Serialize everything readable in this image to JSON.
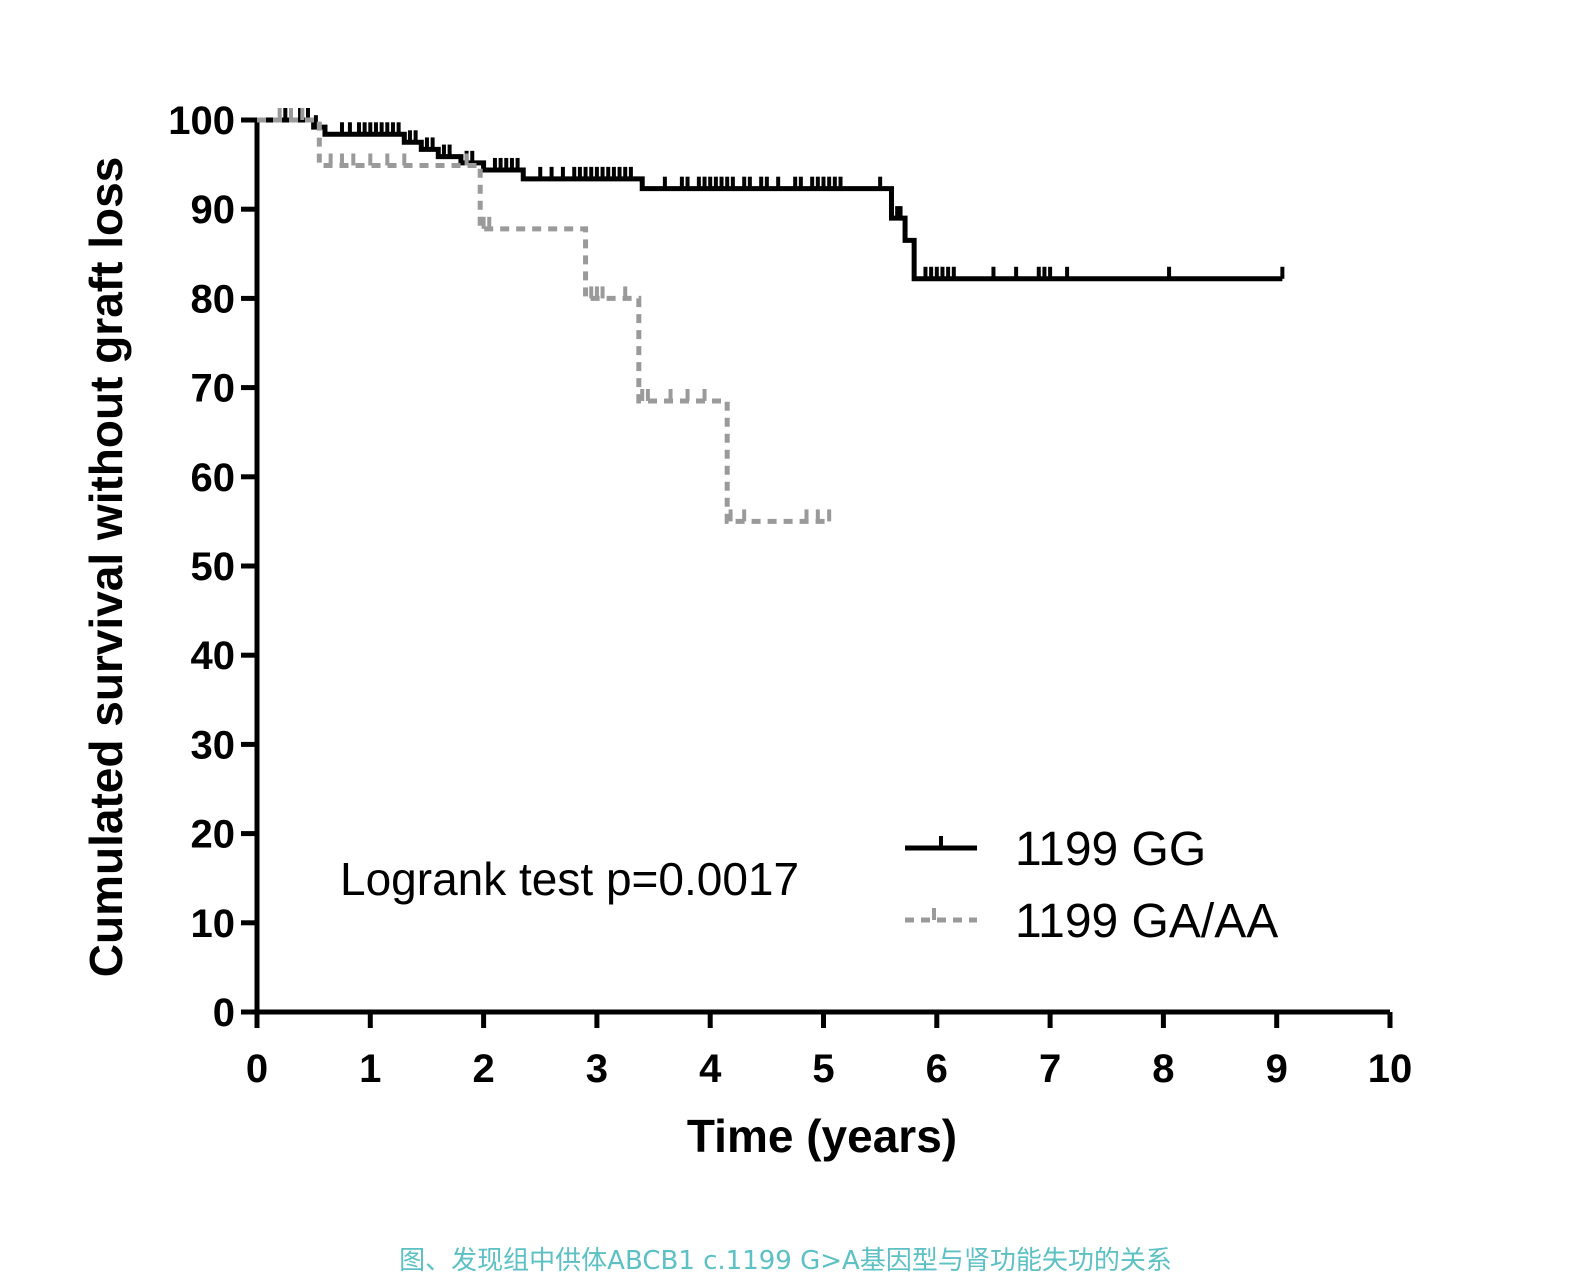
{
  "chart_data": {
    "type": "line",
    "subtype": "kaplan-meier",
    "xlabel": "Time (years)",
    "ylabel": "Cumulated survival without graft loss",
    "xlim": [
      0,
      10
    ],
    "ylim": [
      0,
      100
    ],
    "xticks": [
      "0",
      "1",
      "2",
      "3",
      "4",
      "5",
      "6",
      "7",
      "8",
      "9",
      "10"
    ],
    "yticks": [
      "0",
      "10",
      "20",
      "30",
      "40",
      "50",
      "60",
      "70",
      "80",
      "90",
      "100"
    ],
    "grid": false,
    "legend_position": "bottom-right",
    "annotation": "Logrank test p=0.0017",
    "series": [
      {
        "name": "1199 GG",
        "color": "#000000",
        "style": "solid",
        "steps": [
          [
            0,
            100
          ],
          [
            0.5,
            99.2
          ],
          [
            0.6,
            98.4
          ],
          [
            1.3,
            97.5
          ],
          [
            1.45,
            96.7
          ],
          [
            1.6,
            95.9
          ],
          [
            1.8,
            95.2
          ],
          [
            2.0,
            94.4
          ],
          [
            2.35,
            93.4
          ],
          [
            3.4,
            92.3
          ],
          [
            5.6,
            89.0
          ],
          [
            5.72,
            86.5
          ],
          [
            5.8,
            82.2
          ],
          [
            9.05,
            82.2
          ]
        ],
        "censored": [
          [
            0.25,
            100
          ],
          [
            0.3,
            100
          ],
          [
            0.38,
            100
          ],
          [
            0.45,
            100
          ],
          [
            0.52,
            99.2
          ],
          [
            0.75,
            98.4
          ],
          [
            0.82,
            98.4
          ],
          [
            0.9,
            98.4
          ],
          [
            0.95,
            98.4
          ],
          [
            1.0,
            98.4
          ],
          [
            1.05,
            98.4
          ],
          [
            1.1,
            98.4
          ],
          [
            1.15,
            98.4
          ],
          [
            1.2,
            98.4
          ],
          [
            1.25,
            98.4
          ],
          [
            1.35,
            97.5
          ],
          [
            1.4,
            97.5
          ],
          [
            1.5,
            96.7
          ],
          [
            1.55,
            96.7
          ],
          [
            1.65,
            95.9
          ],
          [
            1.7,
            95.9
          ],
          [
            1.85,
            95.2
          ],
          [
            1.9,
            95.2
          ],
          [
            2.1,
            94.4
          ],
          [
            2.15,
            94.4
          ],
          [
            2.2,
            94.4
          ],
          [
            2.25,
            94.4
          ],
          [
            2.3,
            94.4
          ],
          [
            2.5,
            93.4
          ],
          [
            2.6,
            93.4
          ],
          [
            2.7,
            93.4
          ],
          [
            2.8,
            93.4
          ],
          [
            2.85,
            93.4
          ],
          [
            2.9,
            93.4
          ],
          [
            2.95,
            93.4
          ],
          [
            3.0,
            93.4
          ],
          [
            3.05,
            93.4
          ],
          [
            3.1,
            93.4
          ],
          [
            3.15,
            93.4
          ],
          [
            3.2,
            93.4
          ],
          [
            3.25,
            93.4
          ],
          [
            3.3,
            93.4
          ],
          [
            3.6,
            92.3
          ],
          [
            3.75,
            92.3
          ],
          [
            3.8,
            92.3
          ],
          [
            3.9,
            92.3
          ],
          [
            3.95,
            92.3
          ],
          [
            4.0,
            92.3
          ],
          [
            4.05,
            92.3
          ],
          [
            4.1,
            92.3
          ],
          [
            4.15,
            92.3
          ],
          [
            4.2,
            92.3
          ],
          [
            4.3,
            92.3
          ],
          [
            4.35,
            92.3
          ],
          [
            4.45,
            92.3
          ],
          [
            4.5,
            92.3
          ],
          [
            4.6,
            92.3
          ],
          [
            4.75,
            92.3
          ],
          [
            4.8,
            92.3
          ],
          [
            4.9,
            92.3
          ],
          [
            4.95,
            92.3
          ],
          [
            5.0,
            92.3
          ],
          [
            5.05,
            92.3
          ],
          [
            5.1,
            92.3
          ],
          [
            5.15,
            92.3
          ],
          [
            5.5,
            92.3
          ],
          [
            5.65,
            89.0
          ],
          [
            5.68,
            89.0
          ],
          [
            5.9,
            82.2
          ],
          [
            5.95,
            82.2
          ],
          [
            6.0,
            82.2
          ],
          [
            6.05,
            82.2
          ],
          [
            6.1,
            82.2
          ],
          [
            6.15,
            82.2
          ],
          [
            6.5,
            82.2
          ],
          [
            6.7,
            82.2
          ],
          [
            6.9,
            82.2
          ],
          [
            6.95,
            82.2
          ],
          [
            7.0,
            82.2
          ],
          [
            7.15,
            82.2
          ],
          [
            8.05,
            82.2
          ],
          [
            9.05,
            82.2
          ]
        ]
      },
      {
        "name": "1199 GA/AA",
        "color": "#9a9a9a",
        "style": "dashed",
        "steps": [
          [
            0,
            100
          ],
          [
            0.55,
            94.9
          ],
          [
            1.97,
            87.8
          ],
          [
            2.9,
            80.0
          ],
          [
            3.37,
            68.5
          ],
          [
            4.15,
            55.0
          ],
          [
            5.05,
            55.0
          ]
        ],
        "censored": [
          [
            0.2,
            100
          ],
          [
            0.3,
            100
          ],
          [
            0.4,
            100
          ],
          [
            0.65,
            94.9
          ],
          [
            0.75,
            94.9
          ],
          [
            0.85,
            94.9
          ],
          [
            1.0,
            94.9
          ],
          [
            1.15,
            94.9
          ],
          [
            1.3,
            94.9
          ],
          [
            1.85,
            94.9
          ],
          [
            2.0,
            87.8
          ],
          [
            2.05,
            87.8
          ],
          [
            2.95,
            80.0
          ],
          [
            3.0,
            80.0
          ],
          [
            3.05,
            80.0
          ],
          [
            3.25,
            80.0
          ],
          [
            3.4,
            68.5
          ],
          [
            3.45,
            68.5
          ],
          [
            3.65,
            68.5
          ],
          [
            3.8,
            68.5
          ],
          [
            3.95,
            68.5
          ],
          [
            4.18,
            55.0
          ],
          [
            4.3,
            55.0
          ],
          [
            4.85,
            55.0
          ],
          [
            4.95,
            55.0
          ],
          [
            5.05,
            55.0
          ]
        ]
      }
    ]
  },
  "caption": "图、发现组中供体ABCB1 c.1199 G>A基因型与肾功能失功的关系"
}
